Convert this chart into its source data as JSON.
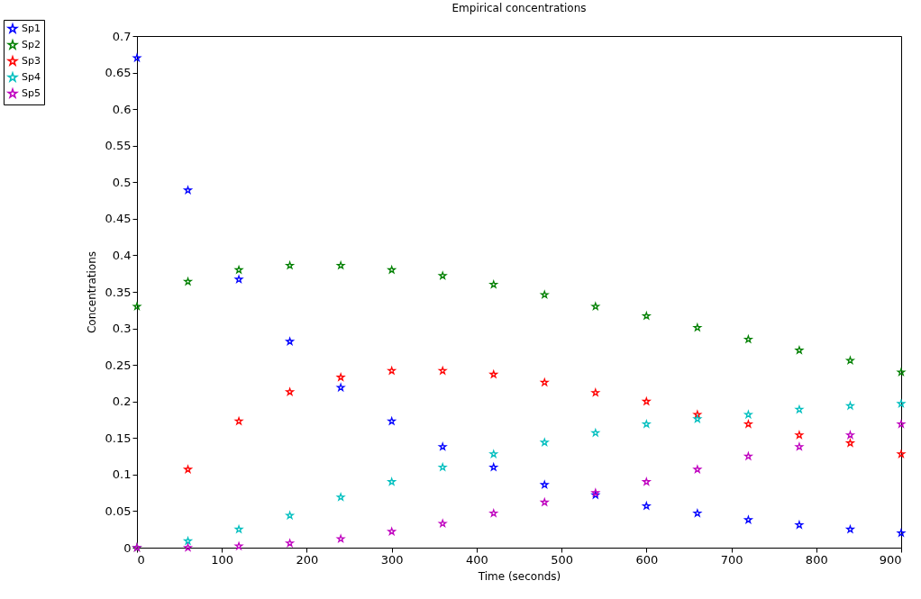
{
  "chart_data": {
    "type": "scatter",
    "title": "Empirical concentrations",
    "xlabel": "Time (seconds)",
    "ylabel": "Concentrations",
    "x": [
      0,
      60,
      120,
      180,
      240,
      300,
      360,
      420,
      480,
      540,
      600,
      660,
      720,
      780,
      840,
      900
    ],
    "series": [
      {
        "name": "Sp1",
        "color": "#0000ff",
        "values": [
          0.67,
          0.489,
          0.367,
          0.282,
          0.219,
          0.173,
          0.138,
          0.11,
          0.086,
          0.072,
          0.057,
          0.047,
          0.038,
          0.031,
          0.025,
          0.02
        ]
      },
      {
        "name": "Sp2",
        "color": "#008000",
        "values": [
          0.33,
          0.364,
          0.38,
          0.386,
          0.386,
          0.38,
          0.372,
          0.36,
          0.346,
          0.33,
          0.317,
          0.301,
          0.285,
          0.27,
          0.256,
          0.24
        ]
      },
      {
        "name": "Sp3",
        "color": "#ff0000",
        "values": [
          0,
          0.107,
          0.173,
          0.213,
          0.233,
          0.242,
          0.242,
          0.237,
          0.226,
          0.212,
          0.2,
          0.182,
          0.169,
          0.154,
          0.143,
          0.128
        ]
      },
      {
        "name": "Sp4",
        "color": "#00bfbf",
        "values": [
          0,
          0.009,
          0.025,
          0.044,
          0.069,
          0.09,
          0.11,
          0.128,
          0.144,
          0.157,
          0.169,
          0.176,
          0.182,
          0.189,
          0.194,
          0.197
        ]
      },
      {
        "name": "Sp5",
        "color": "#bf00bf",
        "values": [
          0,
          0,
          0.002,
          0.006,
          0.012,
          0.022,
          0.033,
          0.047,
          0.062,
          0.075,
          0.09,
          0.107,
          0.125,
          0.138,
          0.154,
          0.169
        ]
      }
    ],
    "xlim": [
      0,
      900
    ],
    "xticks": [
      0,
      100,
      200,
      300,
      400,
      500,
      600,
      700,
      800,
      900
    ],
    "ylim": [
      0,
      0.7
    ],
    "yticks": [
      0,
      0.05,
      0.1,
      0.15,
      0.2,
      0.25,
      0.3,
      0.35,
      0.4,
      0.45,
      0.5,
      0.55,
      0.6,
      0.65,
      0.7
    ],
    "grid": false,
    "legend": "top left",
    "marker": "star"
  }
}
